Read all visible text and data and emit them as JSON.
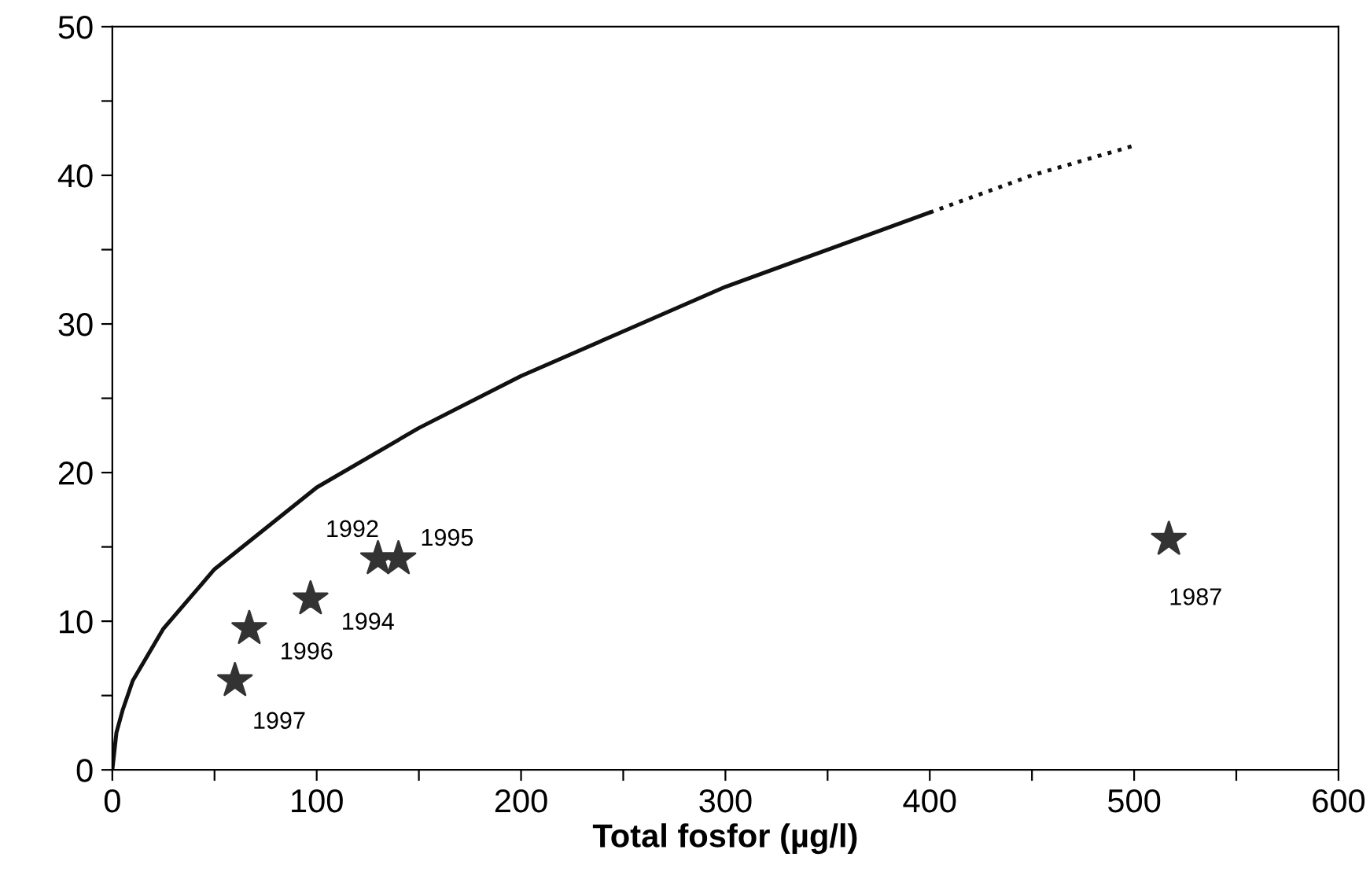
{
  "chart_data": {
    "type": "scatter",
    "xlabel": "Total fosfor (µg/l)",
    "xlim": [
      0,
      600
    ],
    "ylim": [
      0,
      50
    ],
    "xticks": [
      0,
      {
        "value": 50,
        "label": null
      },
      100,
      {
        "value": 150,
        "label": null
      },
      200,
      {
        "value": 250,
        "label": null
      },
      300,
      {
        "value": 350,
        "label": null
      },
      400,
      {
        "value": 450,
        "label": null
      },
      500,
      {
        "value": 550,
        "label": null
      },
      600
    ],
    "yticks": [
      0,
      {
        "value": 5,
        "label": null
      },
      10,
      {
        "value": 15,
        "label": null
      },
      20,
      {
        "value": 25,
        "label": null
      },
      30,
      {
        "value": 35,
        "label": null
      },
      40,
      {
        "value": 45,
        "label": null
      },
      50
    ],
    "grid": false,
    "legend": false,
    "series": [
      {
        "type": "line",
        "color": "#111111",
        "line_style": "solid",
        "marker": "none",
        "x": [
          0,
          2,
          5,
          10,
          25,
          50,
          100,
          150,
          200,
          250,
          300,
          350,
          400
        ],
        "values": [
          0,
          2.5,
          4,
          6,
          9.5,
          13.5,
          19,
          23,
          26.5,
          29.5,
          32.5,
          35,
          37.5
        ]
      },
      {
        "type": "line",
        "color": "#111111",
        "line_style": "dotted",
        "marker": "none",
        "x": [
          400,
          450,
          500
        ],
        "values": [
          37.5,
          40,
          42
        ]
      },
      {
        "color": "#333333",
        "marker": "star",
        "x": [
          60,
          67,
          97,
          130,
          140,
          517
        ],
        "values": [
          6,
          9.5,
          11.5,
          14.2,
          14.2,
          15.5
        ]
      }
    ],
    "annotations": [
      {
        "text": "1997",
        "x": 60,
        "y": 6
      },
      {
        "text": "1996",
        "x": 67,
        "y": 9.5
      },
      {
        "text": "1994",
        "x": 97,
        "y": 11.5
      },
      {
        "text": "1992",
        "x": 130,
        "y": 14.2
      },
      {
        "text": "1995",
        "x": 140,
        "y": 14.2
      },
      {
        "text": "1987",
        "x": 517,
        "y": 15.5
      }
    ]
  }
}
